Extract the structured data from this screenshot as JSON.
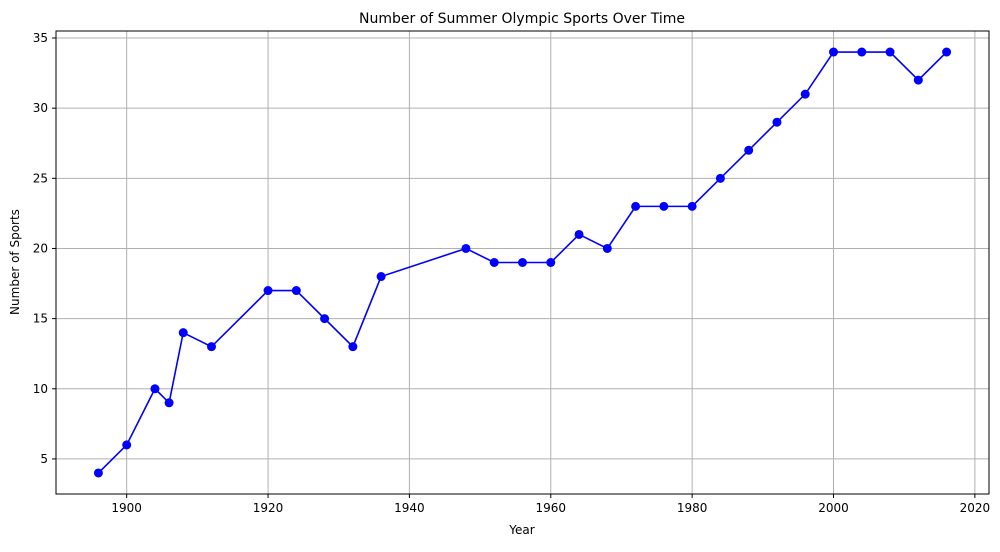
{
  "chart_data": {
    "type": "line",
    "title": "Number of Summer Olympic Sports Over Time",
    "xlabel": "Year",
    "ylabel": "Number of Sports",
    "xlim": [
      1890,
      2022
    ],
    "ylim": [
      2.5,
      35.5
    ],
    "xticks": [
      1900,
      1920,
      1940,
      1960,
      1980,
      2000,
      2020
    ],
    "yticks": [
      5,
      10,
      15,
      20,
      25,
      30,
      35
    ],
    "grid": true,
    "marker": "circle",
    "line_color": "#0000ff",
    "grid_color": "#b0b0b0",
    "x": [
      1896,
      1900,
      1904,
      1906,
      1908,
      1912,
      1920,
      1924,
      1928,
      1932,
      1936,
      1948,
      1952,
      1956,
      1960,
      1964,
      1968,
      1972,
      1976,
      1980,
      1984,
      1988,
      1992,
      1996,
      2000,
      2004,
      2008,
      2012,
      2016
    ],
    "y": [
      4,
      6,
      10,
      9,
      14,
      13,
      17,
      17,
      15,
      13,
      18,
      20,
      19,
      19,
      19,
      21,
      20,
      23,
      23,
      23,
      25,
      27,
      29,
      31,
      34,
      34,
      34,
      32,
      34
    ]
  }
}
